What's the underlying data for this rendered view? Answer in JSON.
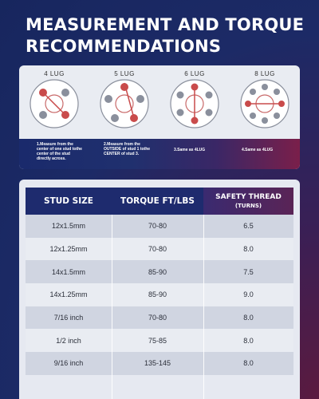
{
  "title": {
    "line1": "MEASUREMENT AND TORQUE",
    "line2": "RECOMMENDATIONS"
  },
  "colors": {
    "navy": "#1e2b6e",
    "magenta": "#7a1f4a",
    "marker_red": "#d9534f",
    "panel": "#e9ecf2"
  },
  "lug_diagrams": [
    {
      "label": "4 LUG",
      "note": "1.Measure from the center of one stud tothe center of the stud directly across."
    },
    {
      "label": "5 LUG",
      "note": "2.Measure from the OUTSIDE of stud 1 tothe CENTER of stud 3."
    },
    {
      "label": "6 LUG",
      "note": "3.Same as 4LUG"
    },
    {
      "label": "8 LUG",
      "note": "4.Same as 4LUG"
    }
  ],
  "table": {
    "headers": {
      "stud_size": "STUD SIZE",
      "torque": "TORQUE FT/LBS",
      "safety_thread": "SAFETY THREAD",
      "safety_thread_sub": "(TURNS)"
    },
    "rows": [
      {
        "stud": "12x1.5mm",
        "torque": "70-80",
        "turns": "6.5"
      },
      {
        "stud": "12x1.25mm",
        "torque": "70-80",
        "turns": "8.0"
      },
      {
        "stud": "14x1.5mm",
        "torque": "85-90",
        "turns": "7.5"
      },
      {
        "stud": "14x1.25mm",
        "torque": "85-90",
        "turns": "9.0"
      },
      {
        "stud": "7/16 inch",
        "torque": "70-80",
        "turns": "8.0"
      },
      {
        "stud": "1/2 inch",
        "torque": "75-85",
        "turns": "8.0"
      },
      {
        "stud": "9/16 inch",
        "torque": "135-145",
        "turns": "8.0"
      }
    ]
  }
}
